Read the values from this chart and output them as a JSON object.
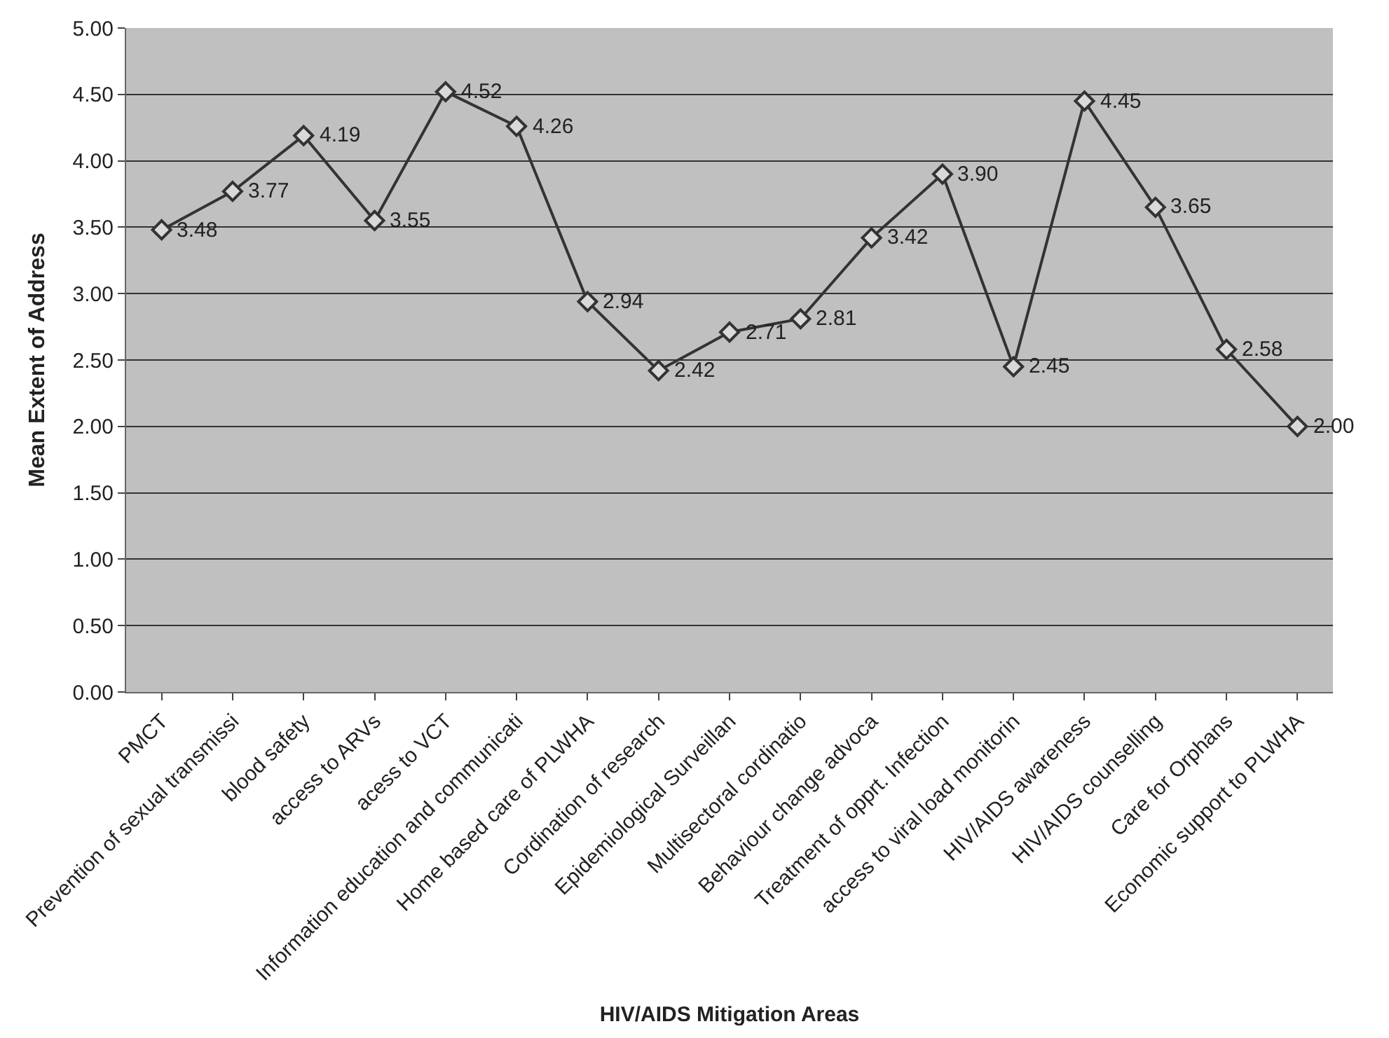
{
  "chart_data": {
    "type": "line",
    "xlabel": "HIV/AIDS Mitigation Areas",
    "ylabel": "Mean Extent of Address",
    "categories": [
      "PMCT",
      "Prevention of sexual transmissi",
      "blood safety",
      "access to ARVs",
      "acess to VCT",
      "Information education and communicati",
      "Home based care of PLWHA",
      "Cordination of research",
      "Epidemiological Surveillan",
      "Multisectoral cordinatio",
      "Behaviour change advoca",
      "Treatment of opprt. Infection",
      "access to viral load monitorin",
      "HIV/AIDS awareness",
      "HIV/AIDS counselling",
      "Care for Orphans",
      "Economic support to PLWHA"
    ],
    "series": [
      {
        "color": "#333333",
        "values": [
          3.48,
          3.77,
          4.19,
          3.55,
          4.52,
          4.26,
          2.94,
          2.42,
          2.71,
          2.81,
          3.42,
          3.9,
          2.45,
          4.45,
          3.65,
          2.58,
          2.0
        ],
        "value_labels": [
          "3.48",
          "3.77",
          "4.19",
          "3.55",
          "4.52",
          "4.26",
          "2.94",
          "2.42",
          "2.71",
          "2.81",
          "3.42",
          "3.90",
          "2.45",
          "4.45",
          "3.65",
          "2.58",
          "2.00"
        ]
      }
    ],
    "ylim": [
      0,
      5
    ],
    "yticks": [
      {
        "value": 0,
        "label": "0.00"
      },
      {
        "value": 0.5,
        "label": "0.50"
      },
      {
        "value": 1,
        "label": "1.00"
      },
      {
        "value": 1.5,
        "label": "1.50"
      },
      {
        "value": 2,
        "label": "2.00"
      },
      {
        "value": 2.5,
        "label": "2.50"
      },
      {
        "value": 3,
        "label": "3.00"
      },
      {
        "value": 3.5,
        "label": "3.50"
      },
      {
        "value": 4,
        "label": "4.00"
      },
      {
        "value": 4.5,
        "label": "4.50"
      },
      {
        "value": 5,
        "label": "5.00"
      }
    ],
    "grid": "y",
    "marker": "diamond",
    "line_style": "solid"
  }
}
